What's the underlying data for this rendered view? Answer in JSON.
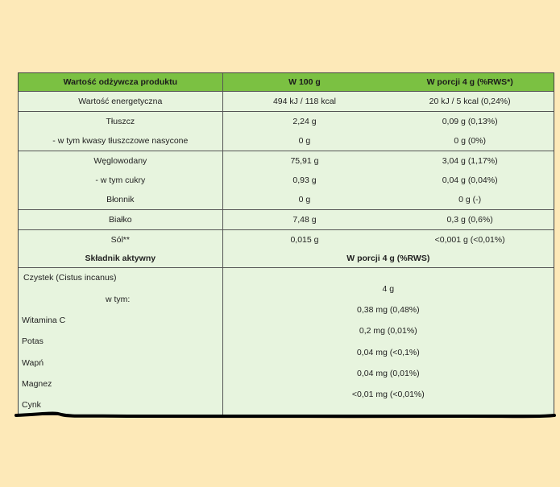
{
  "header": {
    "col1": "Wartość odżywcza produktu",
    "col2": "W 100 g",
    "col3": "W porcji 4 g (%RWS*)"
  },
  "nutrition": [
    {
      "name": "Wartość energetyczna",
      "per100": "494 kJ / 118 kcal",
      "portion": "20 kJ / 5 kcal (0,24%)"
    },
    {
      "name": "Tłuszcz",
      "per100": "2,24 g",
      "portion": "0,09 g (0,13%)"
    },
    {
      "name": "- w tym kwasy tłuszczowe nasycone",
      "per100": "0 g",
      "portion": "0 g (0%)"
    },
    {
      "name": "Węglowodany",
      "per100": "75,91 g",
      "portion": "3,04 g (1,17%)"
    },
    {
      "name": "- w tym cukry",
      "per100": "0,93 g",
      "portion": "0,04 g (0,04%)"
    },
    {
      "name": "Błonnik",
      "per100": "0 g",
      "portion": "0 g (-)"
    },
    {
      "name": "Białko",
      "per100": "7,48 g",
      "portion": "0,3 g (0,6%)"
    },
    {
      "name": "Sól**",
      "per100": "0,015 g",
      "portion": "<0,001 g (<0,01%)"
    }
  ],
  "active": {
    "col1": "Składnik aktywny",
    "col2": "W porcji 4 g (%RWS)",
    "names": [
      "Czystek (Cistus incanus)",
      "w tym:",
      "Witamina C",
      "Potas",
      "Wapń",
      "Magnez",
      "Cynk"
    ],
    "values": [
      "4 g",
      "0,38 mg (0,48%)",
      "0,2 mg (0,01%)",
      "0,04 mg (<0,1%)",
      "0,04 mg (0,01%)",
      "<0,01 mg (<0,01%)"
    ]
  },
  "colors": {
    "header": "#7bc142",
    "table": "#e7f4de",
    "page": "#fde9b8"
  }
}
